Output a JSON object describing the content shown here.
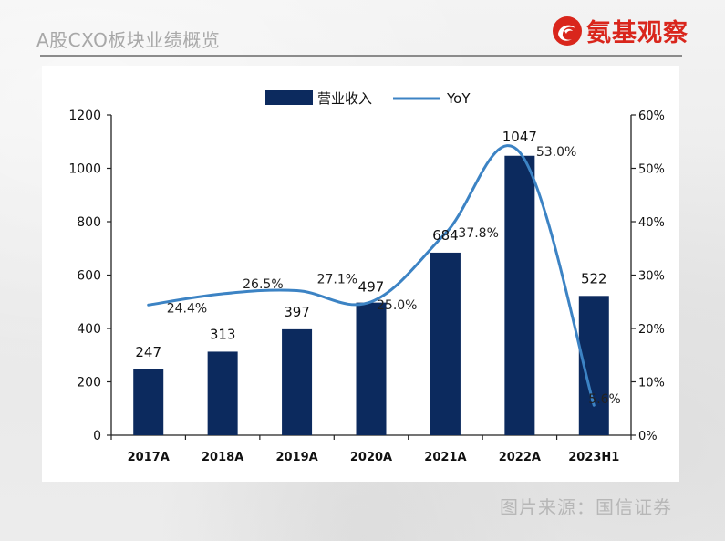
{
  "header": {
    "title": "A股CXO板块业绩概览",
    "brand_name": "氨基观察",
    "logo_icon": "brand-swirl-icon"
  },
  "footer": {
    "source": "图片来源：国信证券"
  },
  "colors": {
    "bar": "#0c2a5e",
    "line": "#3c83c4",
    "brand": "#d9261c"
  },
  "chart_data": {
    "type": "bar",
    "title": "",
    "categories": [
      "2017A",
      "2018A",
      "2019A",
      "2020A",
      "2021A",
      "2022A",
      "2023H1"
    ],
    "series": [
      {
        "name": "营业收入",
        "type": "bar",
        "axis": "left",
        "values": [
          247,
          313,
          397,
          497,
          684,
          1047,
          522
        ],
        "labels": [
          "247",
          "313",
          "397",
          "497",
          "684",
          "1047",
          "522"
        ]
      },
      {
        "name": "YoY",
        "type": "line",
        "axis": "right",
        "values": [
          24.4,
          26.5,
          27.1,
          25.0,
          37.8,
          53.0,
          5.6
        ],
        "labels": [
          "24.4%",
          "26.5%",
          "27.1%",
          "25.0%",
          "37.8%",
          "53.0%",
          "5.6%"
        ]
      }
    ],
    "y_left": {
      "min": 0,
      "max": 1200,
      "ticks": [
        "0",
        "200",
        "400",
        "600",
        "800",
        "1000",
        "1200"
      ]
    },
    "y_right": {
      "min": 0,
      "max": 60,
      "ticks": [
        "0%",
        "10%",
        "20%",
        "30%",
        "40%",
        "50%",
        "60%"
      ]
    },
    "legend": [
      "营业收入",
      "YoY"
    ],
    "legend_position": "top-center",
    "grid": false
  }
}
